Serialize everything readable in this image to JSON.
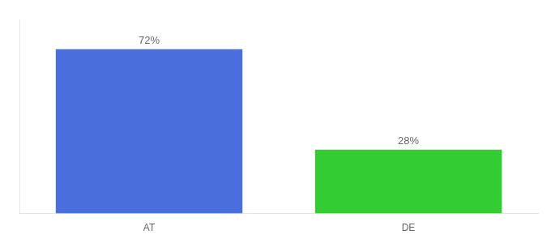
{
  "chart_data": {
    "type": "bar",
    "categories": [
      "AT",
      "DE"
    ],
    "values": [
      72,
      28
    ],
    "value_labels": [
      "72%",
      "28%"
    ],
    "colors": [
      "#4a6edb",
      "#33cc33"
    ],
    "ylim": [
      0,
      85
    ],
    "grid": false,
    "data_labels": true,
    "tick_labels": "x"
  }
}
